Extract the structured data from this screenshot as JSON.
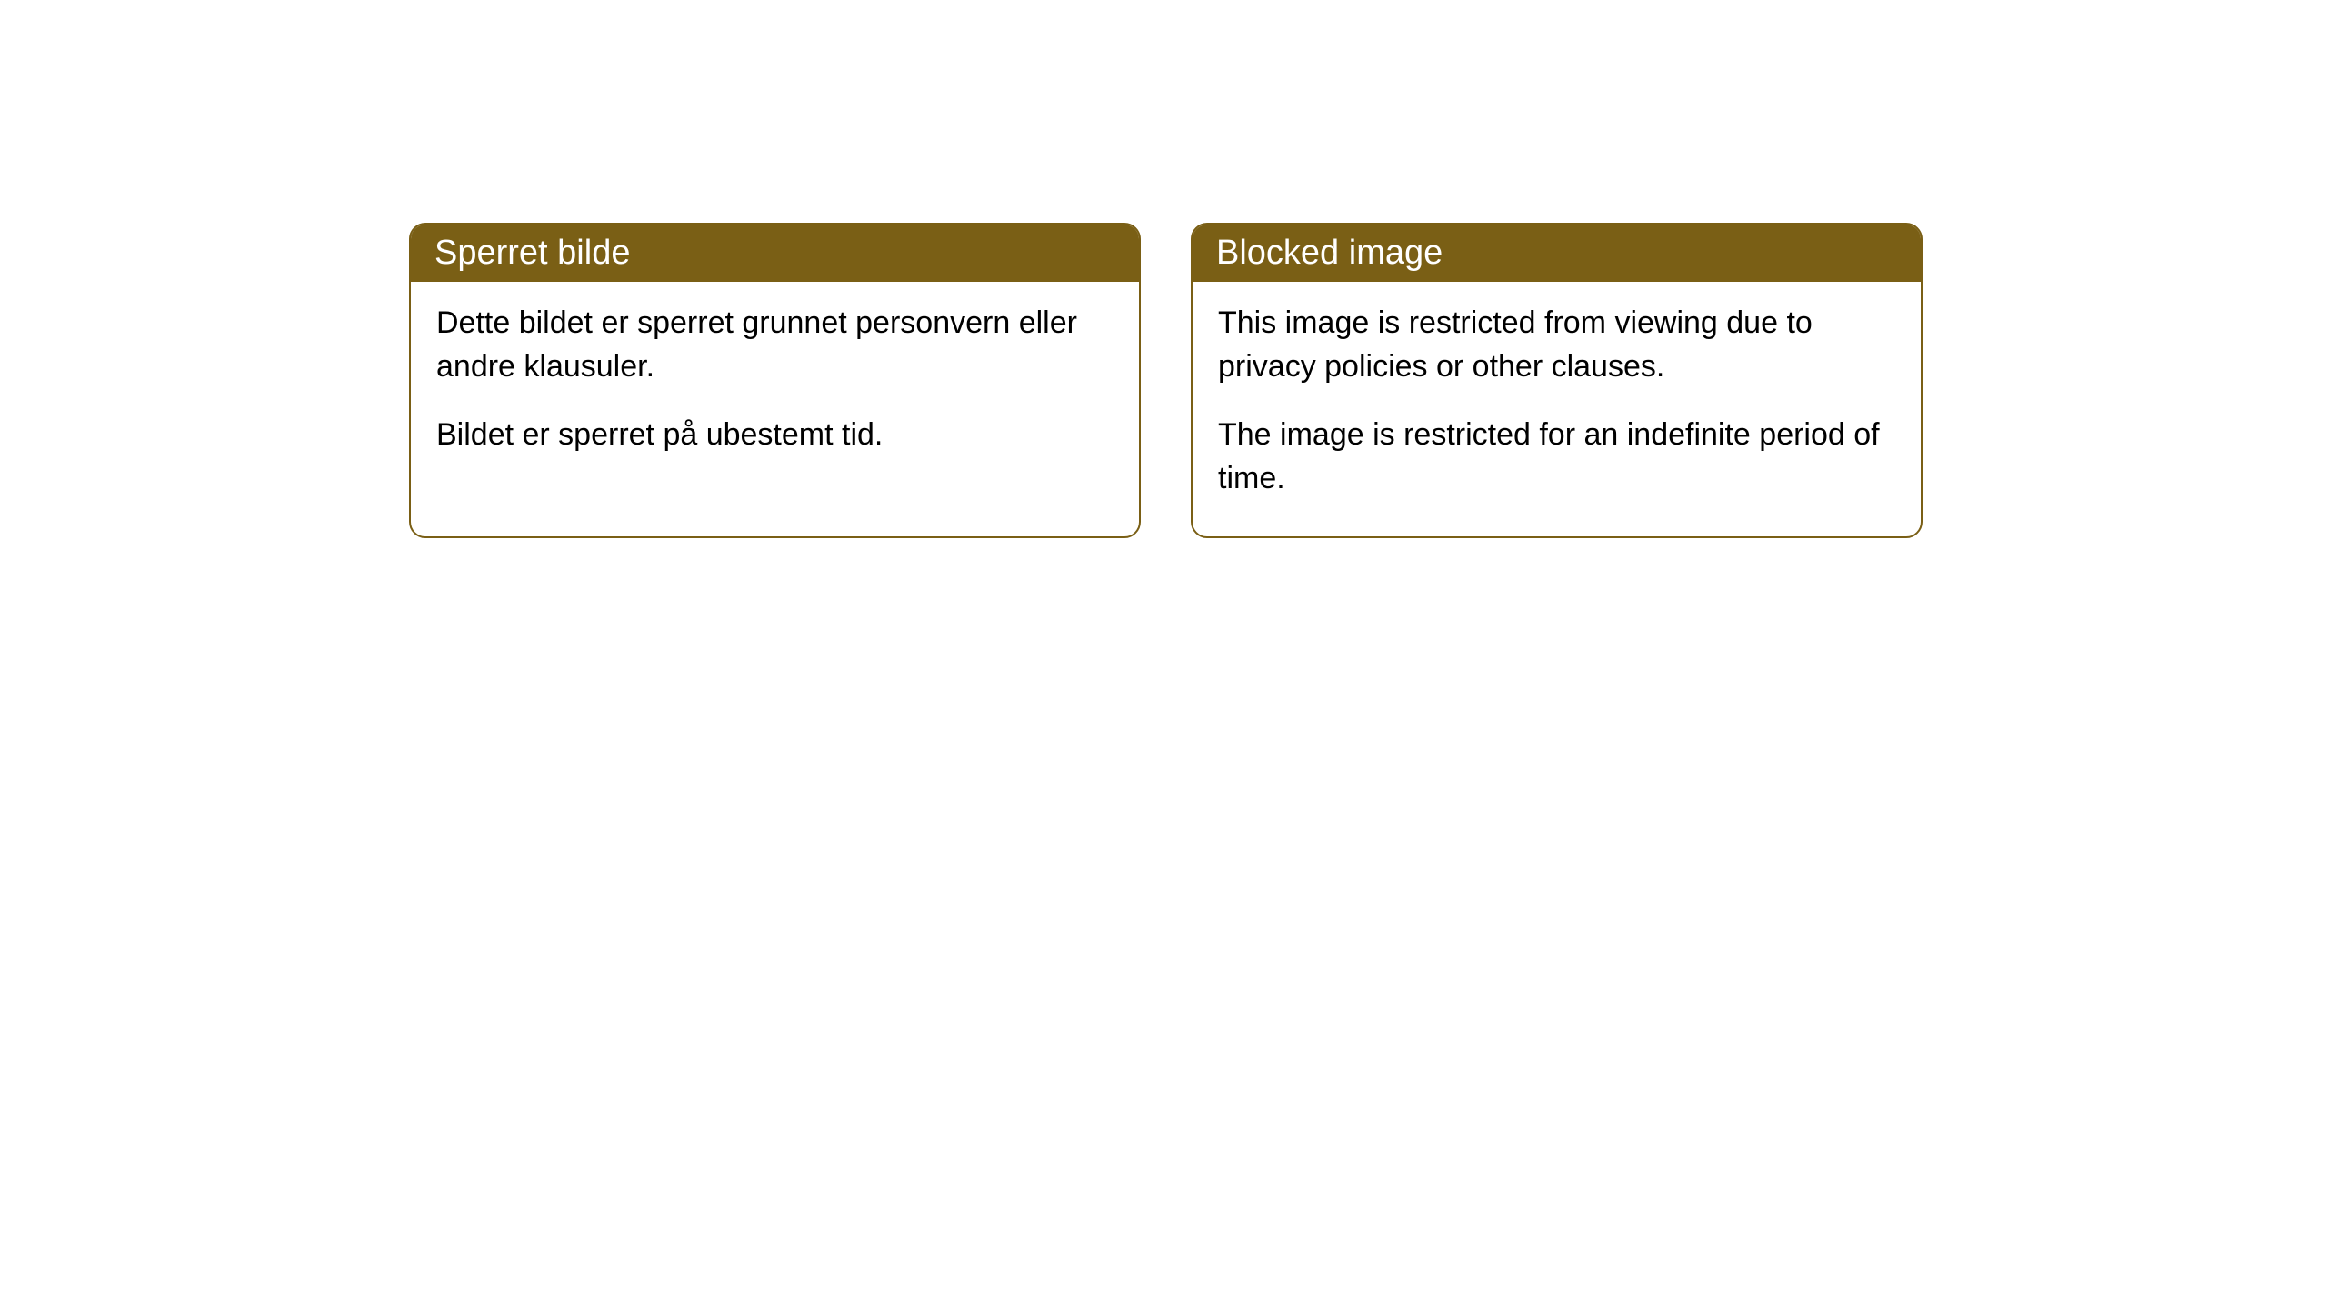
{
  "cards": [
    {
      "title": "Sperret bilde",
      "paragraph1": "Dette bildet er sperret grunnet personvern eller andre klausuler.",
      "paragraph2": "Bildet er sperret på ubestemt tid."
    },
    {
      "title": "Blocked image",
      "paragraph1": "This image is restricted from viewing due to privacy policies or other clauses.",
      "paragraph2": "The image is restricted for an indefinite period of time."
    }
  ],
  "styling": {
    "header_background_color": "#7a5f15",
    "header_text_color": "#ffffff",
    "border_color": "#7a5f15",
    "body_background_color": "#ffffff",
    "body_text_color": "#000000",
    "border_radius": 18,
    "header_fontsize": 38,
    "body_fontsize": 34
  }
}
